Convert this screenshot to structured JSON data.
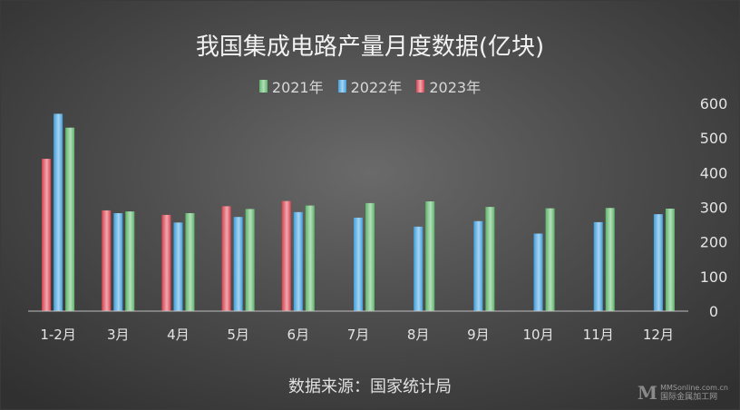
{
  "chart_data": {
    "type": "bar",
    "title": "我国集成电路产量月度数据(亿块)",
    "categories": [
      "1-2月",
      "3月",
      "4月",
      "5月",
      "6月",
      "7月",
      "8月",
      "9月",
      "10月",
      "11月",
      "12月"
    ],
    "series": [
      {
        "name": "2023年",
        "color": "#d9414f",
        "values": [
          440,
          291,
          278,
          303,
          318,
          null,
          null,
          null,
          null,
          null,
          null
        ]
      },
      {
        "name": "2022年",
        "color": "#3f9fdd",
        "values": [
          570,
          283,
          256,
          272,
          286,
          270,
          244,
          260,
          224,
          257,
          280
        ]
      },
      {
        "name": "2021年",
        "color": "#5cb569",
        "values": [
          530,
          288,
          283,
          295,
          305,
          312,
          317,
          301,
          297,
          298,
          296
        ]
      }
    ],
    "legend_order": [
      "2021年",
      "2022年",
      "2023年"
    ],
    "legend_position": "top",
    "y_axis_side": "right",
    "ylim": [
      0,
      600
    ],
    "yticks": [
      "0",
      "100",
      "200",
      "300",
      "400",
      "500",
      "600"
    ],
    "grid": false
  },
  "source_note": "数据来源：国家统计局",
  "watermark": {
    "logo": "M",
    "site": "MMSonline.com.cn",
    "name": "国际金属加工网"
  }
}
